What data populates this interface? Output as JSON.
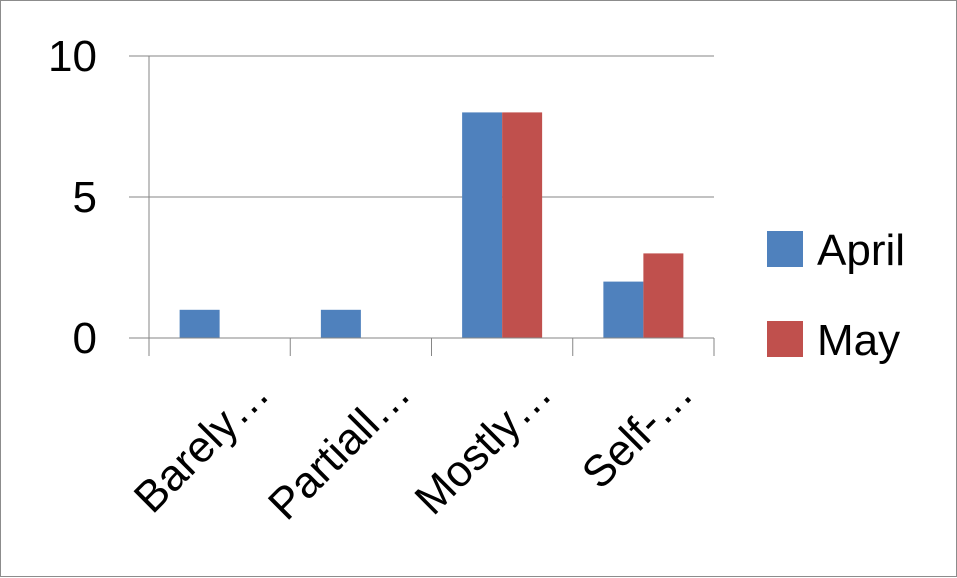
{
  "chart_data": {
    "type": "bar",
    "categories": [
      "Barely…",
      "Partiall…",
      "Mostly…",
      "Self-…"
    ],
    "series": [
      {
        "name": "April",
        "color": "#4f81bd",
        "values": [
          1,
          1,
          8,
          2
        ]
      },
      {
        "name": "May",
        "color": "#c0504d",
        "values": [
          0,
          0,
          8,
          3
        ]
      }
    ],
    "yticks": [
      "0",
      "5",
      "10"
    ],
    "ylim": [
      0,
      10
    ],
    "ytick_values": [
      0,
      5,
      10
    ],
    "grid": true,
    "legend_position": "right"
  }
}
